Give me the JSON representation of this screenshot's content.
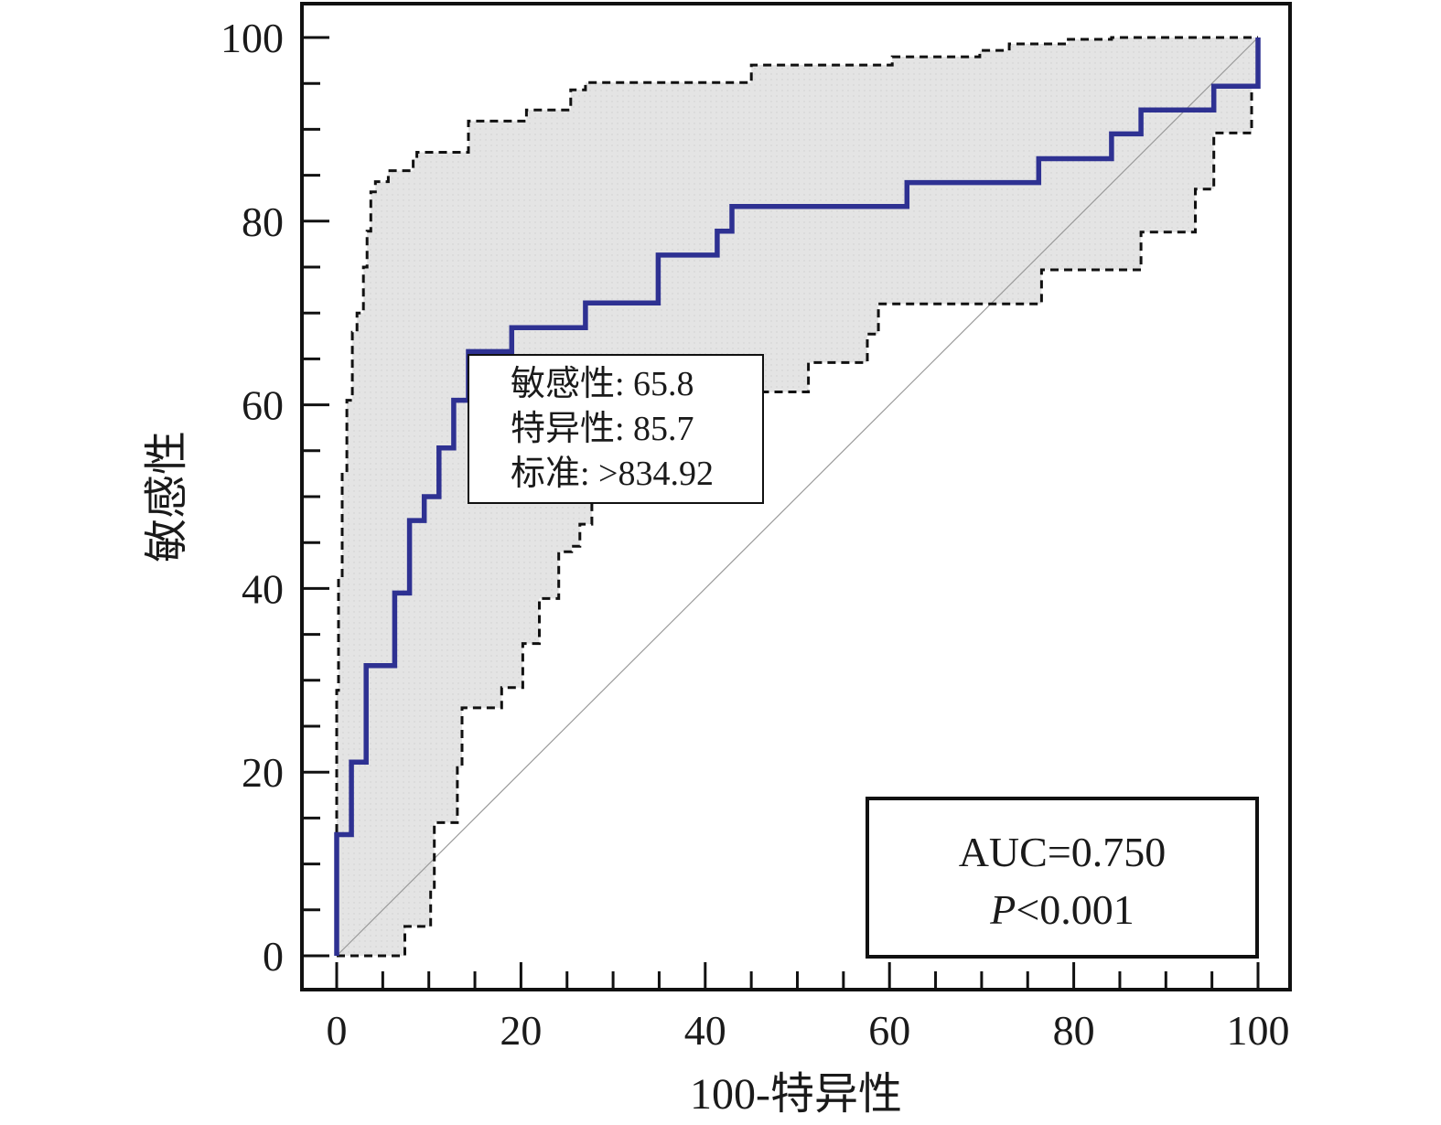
{
  "chart_data": {
    "type": "line",
    "xlabel": "100-特异性",
    "ylabel": "敏感性",
    "xlim": [
      0,
      100
    ],
    "ylim": [
      0,
      100
    ],
    "x_ticks": [
      "0",
      "20",
      "40",
      "60",
      "80",
      "100"
    ],
    "y_ticks": [
      "0",
      "20",
      "40",
      "60",
      "80",
      "100"
    ],
    "grid": false,
    "series": [
      {
        "role": "roc",
        "style": "solid",
        "color": "#2e3192",
        "x": [
          0,
          0,
          1.6,
          1.6,
          3.2,
          3.2,
          6.3,
          6.3,
          7.9,
          7.9,
          9.5,
          9.5,
          11.1,
          11.1,
          12.7,
          12.7,
          14.3,
          14.3,
          19.0,
          19.0,
          27.0,
          27.0,
          34.9,
          34.9,
          41.3,
          41.3,
          42.9,
          42.9,
          61.9,
          61.9,
          76.2,
          76.2,
          84.1,
          84.1,
          87.3,
          87.3,
          95.2,
          95.2,
          100,
          100
        ],
        "y": [
          0,
          13.2,
          13.2,
          21.1,
          21.1,
          31.6,
          31.6,
          39.5,
          39.5,
          47.4,
          47.4,
          50.0,
          50.0,
          55.3,
          55.3,
          60.5,
          60.5,
          65.8,
          65.8,
          68.4,
          68.4,
          71.1,
          71.1,
          76.3,
          76.3,
          78.9,
          78.9,
          81.6,
          81.6,
          84.2,
          84.2,
          86.8,
          86.8,
          89.5,
          89.5,
          92.1,
          92.1,
          94.7,
          94.7,
          100
        ]
      },
      {
        "role": "ci-upper",
        "style": "dashed",
        "color": "#111111",
        "x": [
          0,
          0,
          0.2,
          0.2,
          0.6,
          0.6,
          1.1,
          1.1,
          1.7,
          1.7,
          2.2,
          2.2,
          2.9,
          2.9,
          3.3,
          3.3,
          3.7,
          3.7,
          4.2,
          4.2,
          5.6,
          5.6,
          8.3,
          8.3,
          8.7,
          8.7,
          14.3,
          14.3,
          20.6,
          20.6,
          25.4,
          25.4,
          27.0,
          27.0,
          45.0,
          45.0,
          60.3,
          60.3,
          69.8,
          69.8,
          73.0,
          73.0,
          79.4,
          79.4,
          84.1,
          84.1,
          92.1,
          92.1,
          100,
          100
        ],
        "y": [
          0,
          28.9,
          28.9,
          41.2,
          41.2,
          52.6,
          52.6,
          60.5,
          60.5,
          67.9,
          67.9,
          70.0,
          70.0,
          75.0,
          75.0,
          78.9,
          78.9,
          83.2,
          83.2,
          84.3,
          84.3,
          85.5,
          85.5,
          86.8,
          86.8,
          87.5,
          87.5,
          90.9,
          90.9,
          92.1,
          92.1,
          94.3,
          94.3,
          95.1,
          95.1,
          97.0,
          97.0,
          97.9,
          97.9,
          98.6,
          98.6,
          99.3,
          99.3,
          99.8,
          99.8,
          100,
          100,
          100,
          100,
          100
        ]
      },
      {
        "role": "ci-lower",
        "style": "dashed",
        "color": "#111111",
        "x": [
          0,
          7.4,
          7.4,
          10.2,
          10.2,
          10.6,
          10.6,
          13.1,
          13.1,
          13.6,
          13.6,
          17.9,
          17.9,
          20.2,
          20.2,
          22.0,
          22.0,
          24.1,
          24.1,
          25.5,
          25.5,
          26.4,
          26.4,
          27.7,
          27.7,
          31.4,
          31.4,
          34.3,
          34.3,
          43.1,
          43.1,
          51.2,
          51.2,
          57.6,
          57.6,
          58.8,
          58.8,
          76.5,
          76.5,
          87.3,
          87.3,
          93.2,
          93.2,
          95.2,
          95.2,
          99.3,
          99.3,
          99.9,
          99.9,
          100
        ],
        "y": [
          0,
          0,
          3.2,
          3.2,
          7.2,
          7.2,
          14.5,
          14.5,
          20.5,
          20.5,
          27.0,
          27.0,
          29.2,
          29.2,
          34.0,
          34.0,
          38.9,
          38.9,
          44.0,
          44.0,
          44.6,
          44.6,
          47.0,
          47.0,
          49.4,
          49.4,
          55.2,
          55.2,
          58.4,
          58.4,
          61.4,
          61.4,
          64.6,
          64.6,
          67.7,
          67.7,
          71.0,
          71.0,
          74.7,
          74.7,
          78.8,
          78.8,
          83.5,
          83.5,
          89.6,
          89.6,
          94.7,
          94.7,
          100,
          100
        ]
      },
      {
        "role": "reference",
        "style": "thin",
        "color": "#999999",
        "x": [
          0,
          100
        ],
        "y": [
          0,
          100
        ]
      }
    ],
    "annotation_box": {
      "lines": [
        "敏感性: 65.8",
        "特异性: 85.7",
        "标准: >834.92"
      ],
      "anchor_x": 14.3,
      "anchor_y": 65.8
    },
    "stats_box": {
      "auc": "AUC=0.750",
      "p_label": "P",
      "p_value": "<0.001"
    }
  }
}
